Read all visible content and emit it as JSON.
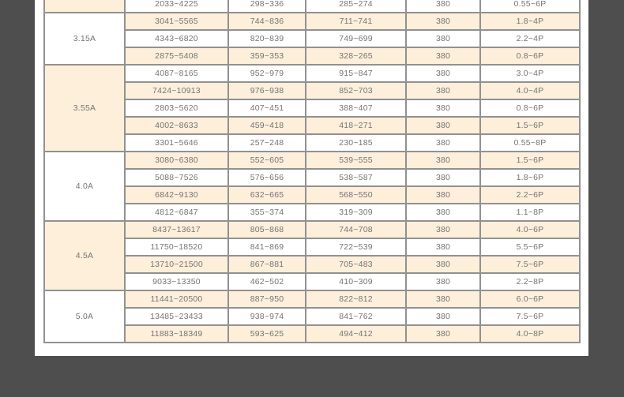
{
  "page": {
    "outer_background": "#4e4e4e",
    "content_background": "#ffffff"
  },
  "table": {
    "colors": {
      "stripe": "#fdefda",
      "border": "#919191",
      "text": "#757575"
    },
    "columns_count": 6,
    "groups": [
      {
        "label": "",
        "rows": [
          [
            "2033~4225",
            "298~336",
            "285~274",
            "380",
            "0.55~6P"
          ]
        ]
      },
      {
        "label": "3.15A",
        "rows": [
          [
            "3041~5565",
            "744~836",
            "711~741",
            "380",
            "1.8~4P"
          ],
          [
            "4343~6820",
            "820~839",
            "749~699",
            "380",
            "2.2~4P"
          ],
          [
            "2875~5408",
            "359~353",
            "328~265",
            "380",
            "0.8~6P"
          ]
        ]
      },
      {
        "label": "3.55A",
        "rows": [
          [
            "4087~8165",
            "952~979",
            "915~847",
            "380",
            "3.0~4P"
          ],
          [
            "7424~10913",
            "976~938",
            "852~703",
            "380",
            "4.0~4P"
          ],
          [
            "2803~5620",
            "407~451",
            "388~407",
            "380",
            "0.8~6P"
          ],
          [
            "4002~8633",
            "459~418",
            "418~271",
            "380",
            "1.5~6P"
          ],
          [
            "3301~5646",
            "257~248",
            "230~185",
            "380",
            "0.55~8P"
          ]
        ]
      },
      {
        "label": "4.0A",
        "rows": [
          [
            "3080~6380",
            "552~605",
            "539~555",
            "380",
            "1.5~6P"
          ],
          [
            "5088~7526",
            "576~656",
            "538~587",
            "380",
            "1.8~6P"
          ],
          [
            "6842~9130",
            "632~665",
            "568~550",
            "380",
            "2.2~6P"
          ],
          [
            "4812~6847",
            "355~374",
            "319~309",
            "380",
            "1.1~8P"
          ]
        ]
      },
      {
        "label": "4.5A",
        "rows": [
          [
            "8437~13617",
            "805~868",
            "744~708",
            "380",
            "4.0~6P"
          ],
          [
            "11750~18520",
            "841~869",
            "722~539",
            "380",
            "5.5~6P"
          ],
          [
            "13710~21500",
            "867~881",
            "705~483",
            "380",
            "7.5~6P"
          ],
          [
            "9033~13350",
            "462~502",
            "410~309",
            "380",
            "2.2~8P"
          ]
        ]
      },
      {
        "label": "5.0A",
        "rows": [
          [
            "11441~20500",
            "887~950",
            "822~812",
            "380",
            "6.0~6P"
          ],
          [
            "13485~23433",
            "938~974",
            "841~762",
            "380",
            "7.5~6P"
          ],
          [
            "11883~18349",
            "593~625",
            "494~412",
            "380",
            "4.0~8P"
          ]
        ]
      }
    ]
  }
}
